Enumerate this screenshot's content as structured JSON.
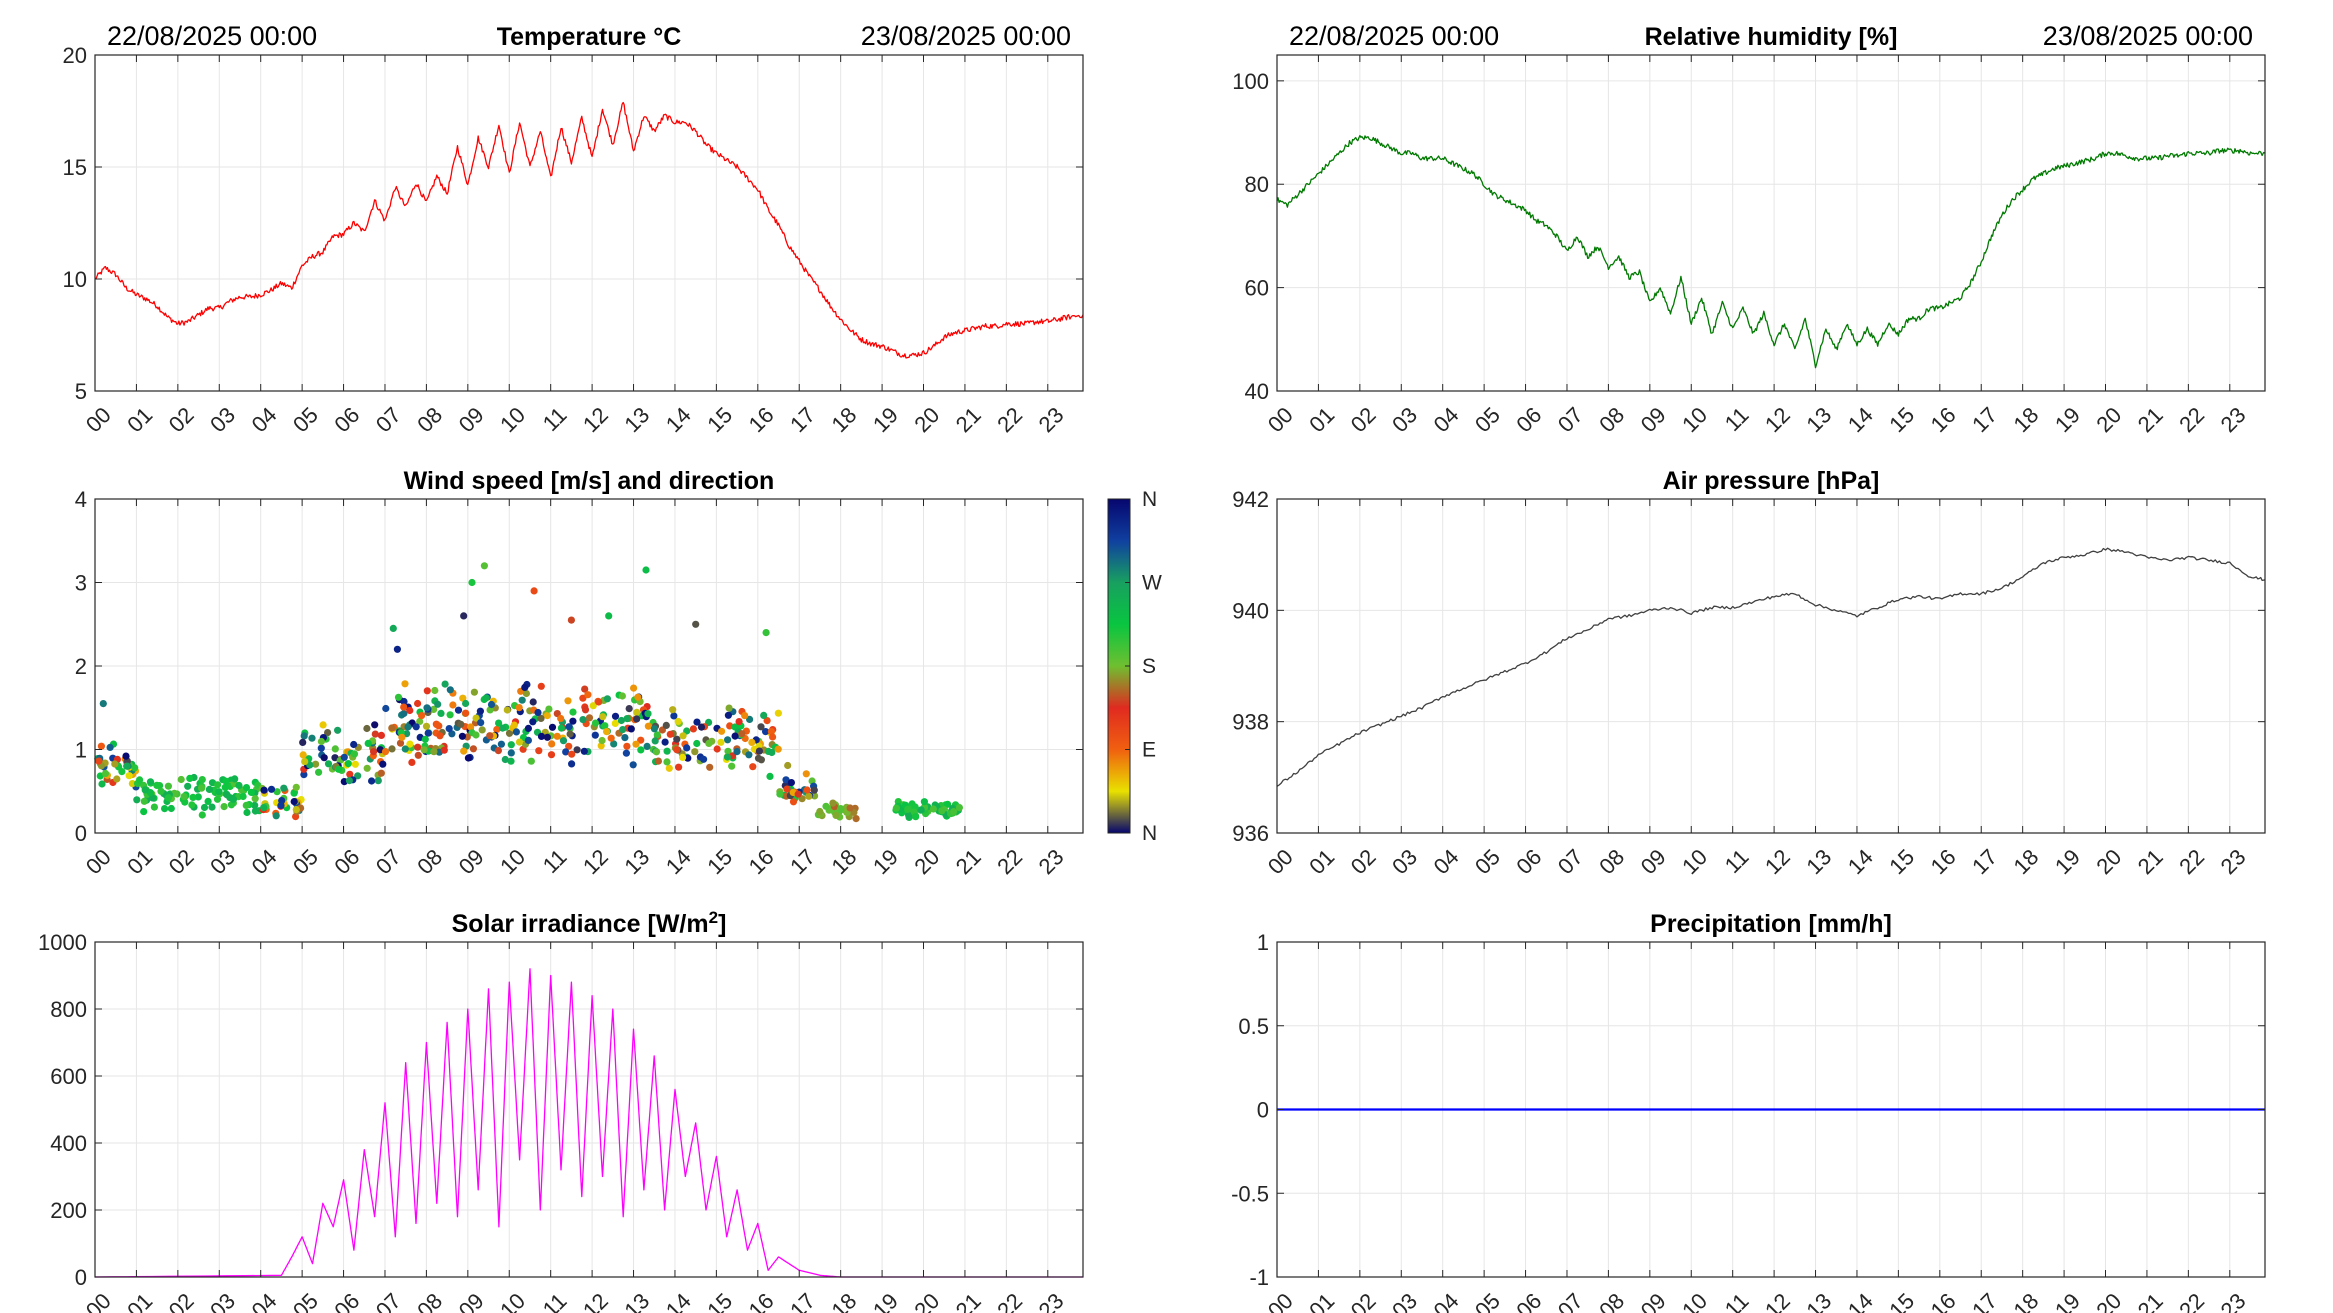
{
  "chart_data": [
    {
      "id": "temperature",
      "type": "line",
      "title": "Temperature °C",
      "date_left": "22/08/2025 00:00",
      "date_right": "23/08/2025 00:00",
      "x_tick_labels": [
        "00",
        "01",
        "02",
        "03",
        "04",
        "05",
        "06",
        "07",
        "08",
        "09",
        "10",
        "11",
        "12",
        "13",
        "14",
        "15",
        "16",
        "17",
        "18",
        "19",
        "20",
        "21",
        "22",
        "23"
      ],
      "xlim": [
        0,
        23.85
      ],
      "ylim": [
        5,
        20
      ],
      "y_ticks": [
        5,
        10,
        15,
        20
      ],
      "y_tick_labels": [
        "5",
        "10",
        "15",
        "20"
      ],
      "series": [
        {
          "name": "Temperature",
          "color": "#ff0000",
          "x": [
            0,
            0.25,
            0.5,
            0.75,
            1,
            1.25,
            1.5,
            1.75,
            2,
            2.25,
            2.5,
            2.75,
            3,
            3.25,
            3.5,
            3.75,
            4,
            4.25,
            4.5,
            4.75,
            5,
            5.25,
            5.5,
            5.75,
            6,
            6.25,
            6.5,
            6.75,
            7,
            7.25,
            7.5,
            7.75,
            8,
            8.25,
            8.5,
            8.75,
            9,
            9.25,
            9.5,
            9.75,
            10,
            10.25,
            10.5,
            10.75,
            11,
            11.25,
            11.5,
            11.75,
            12,
            12.25,
            12.5,
            12.75,
            13,
            13.25,
            13.5,
            13.75,
            14,
            14.25,
            14.5,
            14.75,
            15,
            15.25,
            15.5,
            15.75,
            16,
            16.25,
            16.5,
            16.75,
            17,
            17.25,
            17.5,
            17.75,
            18,
            18.25,
            18.5,
            18.75,
            19,
            19.25,
            19.5,
            19.75,
            20,
            20.25,
            20.5,
            20.75,
            21,
            21.25,
            21.5,
            21.75,
            22,
            22.25,
            22.5,
            22.75,
            23,
            23.25,
            23.5,
            23.85
          ],
          "y": [
            10,
            10.5,
            10.2,
            9.6,
            9.3,
            9.1,
            8.8,
            8.3,
            8.0,
            8.1,
            8.4,
            8.7,
            8.7,
            9.0,
            9.2,
            9.2,
            9.3,
            9.5,
            9.8,
            9.6,
            10.6,
            11.0,
            11.2,
            11.9,
            12.0,
            12.5,
            12.1,
            13.5,
            12.6,
            14.1,
            13.2,
            14.3,
            13.4,
            14.6,
            13.8,
            15.9,
            14.2,
            16.3,
            15.0,
            16.9,
            14.7,
            17.0,
            15.0,
            16.6,
            14.5,
            16.8,
            15.2,
            17.2,
            15.4,
            17.6,
            16.0,
            17.9,
            15.7,
            17.3,
            16.6,
            17.3,
            17.0,
            17.0,
            16.6,
            16.0,
            15.6,
            15.3,
            15.0,
            14.5,
            14.0,
            13.1,
            12.4,
            11.5,
            10.8,
            10.1,
            9.5,
            8.8,
            8.2,
            7.7,
            7.3,
            7.1,
            7.0,
            6.8,
            6.6,
            6.6,
            6.7,
            7.0,
            7.4,
            7.6,
            7.7,
            7.8,
            7.9,
            7.9,
            8.0,
            8.0,
            8.0,
            8.1,
            8.1,
            8.2,
            8.3,
            8.4
          ]
        }
      ]
    },
    {
      "id": "humidity",
      "type": "line",
      "title": "Relative humidity [%]",
      "date_left": "22/08/2025 00:00",
      "date_right": "23/08/2025 00:00",
      "x_tick_labels": [
        "00",
        "01",
        "02",
        "03",
        "04",
        "05",
        "06",
        "07",
        "08",
        "09",
        "10",
        "11",
        "12",
        "13",
        "14",
        "15",
        "16",
        "17",
        "18",
        "19",
        "20",
        "21",
        "22",
        "23"
      ],
      "xlim": [
        0,
        23.85
      ],
      "ylim": [
        40,
        105
      ],
      "y_ticks": [
        40,
        60,
        80,
        100
      ],
      "y_tick_labels": [
        "40",
        "60",
        "80",
        "100"
      ],
      "series": [
        {
          "name": "Relative humidity",
          "color": "#007a00",
          "x": [
            0,
            0.25,
            0.5,
            0.75,
            1,
            1.25,
            1.5,
            1.75,
            2,
            2.25,
            2.5,
            2.75,
            3,
            3.25,
            3.5,
            3.75,
            4,
            4.25,
            4.5,
            4.75,
            5,
            5.25,
            5.5,
            5.75,
            6,
            6.25,
            6.5,
            6.75,
            7,
            7.25,
            7.5,
            7.75,
            8,
            8.25,
            8.5,
            8.75,
            9,
            9.25,
            9.5,
            9.75,
            10,
            10.25,
            10.5,
            10.75,
            11,
            11.25,
            11.5,
            11.75,
            12,
            12.25,
            12.5,
            12.75,
            13,
            13.25,
            13.5,
            13.75,
            14,
            14.25,
            14.5,
            14.75,
            15,
            15.25,
            15.5,
            15.75,
            16,
            16.25,
            16.5,
            16.75,
            17,
            17.25,
            17.5,
            17.75,
            18,
            18.25,
            18.5,
            18.75,
            19,
            19.25,
            19.5,
            19.75,
            20,
            20.25,
            20.5,
            20.75,
            21,
            21.25,
            21.5,
            21.75,
            22,
            22.25,
            22.5,
            22.75,
            23,
            23.25,
            23.5,
            23.85
          ],
          "y": [
            77,
            76,
            78,
            80,
            82,
            84,
            86,
            88,
            89,
            89,
            88,
            87,
            86,
            86,
            85,
            85,
            85,
            84,
            83,
            82,
            80,
            78,
            77,
            76,
            75,
            73,
            72,
            70,
            67,
            70,
            66,
            68,
            64,
            66,
            62,
            63,
            57,
            60,
            55,
            62,
            53,
            58,
            51,
            57,
            52,
            56,
            51,
            55,
            49,
            53,
            48,
            54,
            45,
            52,
            48,
            53,
            49,
            52,
            49,
            53,
            51,
            54,
            54,
            56,
            56,
            57,
            58,
            61,
            65,
            70,
            74,
            77,
            79,
            81,
            82,
            83,
            83.5,
            84,
            84.5,
            85,
            86,
            86,
            85.5,
            85,
            85,
            85,
            85.5,
            85.5,
            86,
            86,
            86,
            86.5,
            86.5,
            86.5,
            86,
            86
          ]
        }
      ]
    },
    {
      "id": "wind",
      "type": "scatter",
      "title": "Wind speed [m/s] and direction",
      "x_tick_labels": [
        "00",
        "01",
        "02",
        "03",
        "04",
        "05",
        "06",
        "07",
        "08",
        "09",
        "10",
        "11",
        "12",
        "13",
        "14",
        "15",
        "16",
        "17",
        "18",
        "19",
        "20",
        "21",
        "22",
        "23"
      ],
      "xlim": [
        0,
        23.85
      ],
      "ylim": [
        0,
        4
      ],
      "y_ticks": [
        0,
        1,
        2,
        3,
        4
      ],
      "y_tick_labels": [
        "0",
        "1",
        "2",
        "3",
        "4"
      ],
      "colorbar": {
        "labels": [
          "N",
          "E",
          "S",
          "W",
          "N"
        ],
        "stops": [
          "#06066e",
          "#e9e100",
          "#f06010",
          "#e02a20",
          "#6fbf30",
          "#09c540",
          "#18a060",
          "#1040a0",
          "#06066e"
        ]
      },
      "series": [
        {
          "name": "Wind speed (color = direction)",
          "segments": [
            {
              "from": 0,
              "to": 1,
              "mean": 0.8,
              "spread": 0.3,
              "count": 40,
              "dir_mode": "mixed"
            },
            {
              "from": 1,
              "to": 4,
              "mean": 0.45,
              "spread": 0.25,
              "count": 100,
              "dir_mode": "westerly"
            },
            {
              "from": 4,
              "to": 5,
              "mean": 0.35,
              "spread": 0.25,
              "count": 35,
              "dir_mode": "mixed"
            },
            {
              "from": 5,
              "to": 7,
              "mean": 0.9,
              "spread": 0.45,
              "count": 70,
              "dir_mode": "mixed"
            },
            {
              "from": 7,
              "to": 13.5,
              "mean": 1.3,
              "spread": 0.55,
              "count": 260,
              "dir_mode": "mixed"
            },
            {
              "from": 13.5,
              "to": 16.5,
              "mean": 1.1,
              "spread": 0.45,
              "count": 110,
              "dir_mode": "mixed"
            },
            {
              "from": 16.5,
              "to": 17.4,
              "mean": 0.55,
              "spread": 0.3,
              "count": 30,
              "dir_mode": "mixed"
            },
            {
              "from": 17.4,
              "to": 18.5,
              "mean": 0.25,
              "spread": 0.12,
              "count": 25,
              "dir_mode": "southerly"
            },
            {
              "from": 19.3,
              "to": 20.9,
              "mean": 0.28,
              "spread": 0.12,
              "count": 60,
              "dir_mode": "westerly"
            }
          ],
          "outliers": [
            {
              "x": 9.4,
              "y": 3.2
            },
            {
              "x": 13.3,
              "y": 3.15
            },
            {
              "x": 10.6,
              "y": 2.9
            },
            {
              "x": 9.1,
              "y": 3.0
            },
            {
              "x": 8.9,
              "y": 2.6
            },
            {
              "x": 14.5,
              "y": 2.5
            },
            {
              "x": 7.2,
              "y": 2.45
            },
            {
              "x": 16.2,
              "y": 2.4
            },
            {
              "x": 11.5,
              "y": 2.55
            },
            {
              "x": 12.4,
              "y": 2.6
            },
            {
              "x": 0.2,
              "y": 1.55
            },
            {
              "x": 7.3,
              "y": 2.2
            }
          ]
        }
      ]
    },
    {
      "id": "pressure",
      "type": "line",
      "title": "Air pressure [hPa]",
      "x_tick_labels": [
        "00",
        "01",
        "02",
        "03",
        "04",
        "05",
        "06",
        "07",
        "08",
        "09",
        "10",
        "11",
        "12",
        "13",
        "14",
        "15",
        "16",
        "17",
        "18",
        "19",
        "20",
        "21",
        "22",
        "23"
      ],
      "xlim": [
        0,
        23.85
      ],
      "ylim": [
        936,
        942
      ],
      "y_ticks": [
        936,
        938,
        940,
        942
      ],
      "y_tick_labels": [
        "936",
        "938",
        "940",
        "942"
      ],
      "series": [
        {
          "name": "Air pressure",
          "color": "#404040",
          "x": [
            0,
            0.5,
            1,
            1.5,
            2,
            2.5,
            3,
            3.5,
            4,
            4.5,
            5,
            5.5,
            6,
            6.5,
            7,
            7.5,
            8,
            8.5,
            9,
            9.5,
            10,
            10.5,
            11,
            11.5,
            12,
            12.5,
            13,
            13.5,
            14,
            14.5,
            15,
            15.5,
            16,
            16.5,
            17,
            17.5,
            18,
            18.5,
            19,
            19.5,
            20,
            20.5,
            21,
            21.5,
            22,
            22.5,
            23,
            23.5,
            23.85
          ],
          "y": [
            936.85,
            937.1,
            937.4,
            937.6,
            937.8,
            937.95,
            938.1,
            938.25,
            938.45,
            938.6,
            938.75,
            938.9,
            939.05,
            939.25,
            939.5,
            939.65,
            939.85,
            939.9,
            940.0,
            940.05,
            939.95,
            940.05,
            940.05,
            940.15,
            940.25,
            940.3,
            940.1,
            940.0,
            939.9,
            940.05,
            940.2,
            940.25,
            940.2,
            940.3,
            940.3,
            940.4,
            940.6,
            940.85,
            940.95,
            941.0,
            941.1,
            941.05,
            940.95,
            940.9,
            940.95,
            940.9,
            940.85,
            940.6,
            940.55
          ]
        }
      ]
    },
    {
      "id": "solar",
      "type": "line",
      "title": "Solar irradiance [W/m",
      "title_sup": "2",
      "title_end": "]",
      "x_tick_labels": [
        "00",
        "01",
        "02",
        "03",
        "04",
        "05",
        "06",
        "07",
        "08",
        "09",
        "10",
        "11",
        "12",
        "13",
        "14",
        "15",
        "16",
        "17",
        "18",
        "19",
        "20",
        "21",
        "22",
        "23"
      ],
      "xlim": [
        0,
        23.85
      ],
      "ylim": [
        0,
        1000
      ],
      "y_ticks": [
        0,
        200,
        400,
        600,
        800,
        1000
      ],
      "y_tick_labels": [
        "0",
        "200",
        "400",
        "600",
        "800",
        "1000"
      ],
      "series": [
        {
          "name": "Solar irradiance",
          "color": "#ff00ff",
          "x": [
            0,
            4.5,
            4.75,
            5,
            5.25,
            5.5,
            5.75,
            6,
            6.25,
            6.5,
            6.75,
            7,
            7.25,
            7.5,
            7.75,
            8,
            8.25,
            8.5,
            8.75,
            9,
            9.25,
            9.5,
            9.75,
            10,
            10.25,
            10.5,
            10.75,
            11,
            11.25,
            11.5,
            11.75,
            12,
            12.25,
            12.5,
            12.75,
            13,
            13.25,
            13.5,
            13.75,
            14,
            14.25,
            14.5,
            14.75,
            15,
            15.25,
            15.5,
            15.75,
            16,
            16.25,
            16.5,
            17,
            17.5,
            18,
            23.85
          ],
          "y": [
            0,
            5,
            60,
            120,
            40,
            220,
            150,
            290,
            80,
            380,
            180,
            520,
            120,
            640,
            160,
            700,
            220,
            760,
            180,
            800,
            260,
            860,
            150,
            880,
            350,
            920,
            200,
            900,
            320,
            880,
            240,
            840,
            300,
            800,
            180,
            740,
            260,
            660,
            200,
            560,
            300,
            460,
            200,
            360,
            120,
            260,
            80,
            160,
            20,
            60,
            20,
            5,
            0,
            0
          ]
        }
      ]
    },
    {
      "id": "precipitation",
      "type": "line",
      "title": "Precipitation [mm/h]",
      "x_tick_labels": [
        "00",
        "01",
        "02",
        "03",
        "04",
        "05",
        "06",
        "07",
        "08",
        "09",
        "10",
        "11",
        "12",
        "13",
        "14",
        "15",
        "16",
        "17",
        "18",
        "19",
        "20",
        "21",
        "22",
        "23"
      ],
      "xlim": [
        0,
        23.85
      ],
      "ylim": [
        -1,
        1
      ],
      "y_ticks": [
        -1,
        -0.5,
        0,
        0.5,
        1
      ],
      "y_tick_labels": [
        "-1",
        "-0.5",
        "0",
        "0.5",
        "1"
      ],
      "series": [
        {
          "name": "Precipitation",
          "color": "#0000ff",
          "x": [
            0,
            23.85
          ],
          "y": [
            0,
            0
          ]
        }
      ]
    }
  ]
}
